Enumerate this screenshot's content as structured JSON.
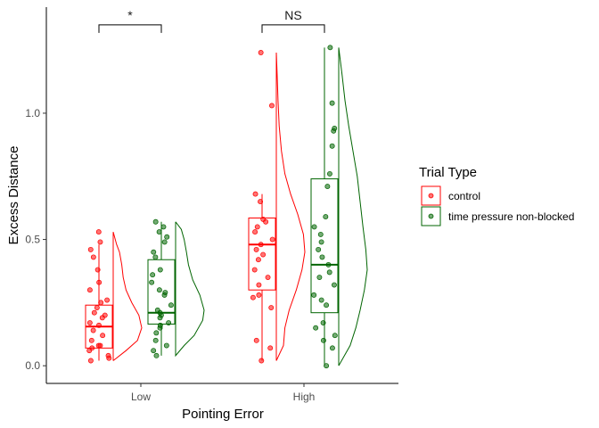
{
  "chart_data": {
    "type": "raincloud",
    "xlabel": "Pointing Error",
    "ylabel": "Excess Distance",
    "categories": [
      "Low",
      "High"
    ],
    "ylim": [
      -0.07,
      1.42
    ],
    "y_ticks": [
      0.0,
      0.5,
      1.0
    ],
    "y_tick_labels": [
      "0.0",
      "0.5",
      "1.0"
    ],
    "grid": false,
    "legend": {
      "title": "Trial Type",
      "position": "right",
      "entries": [
        "control",
        "time pressure non-blocked"
      ]
    },
    "colors": {
      "control": "#FF0000",
      "time pressure non-blocked": "#006400"
    },
    "series": [
      {
        "name": "control",
        "groups": [
          {
            "category": "Low",
            "box": {
              "q1": 0.07,
              "median": 0.155,
              "q3": 0.24,
              "whisker_low": 0.02,
              "whisker_high": 0.48
            },
            "points": [
              0.53,
              0.49,
              0.46,
              0.43,
              0.38,
              0.33,
              0.3,
              0.26,
              0.25,
              0.23,
              0.21,
              0.2,
              0.19,
              0.17,
              0.16,
              0.14,
              0.12,
              0.1,
              0.08,
              0.08,
              0.07,
              0.06,
              0.04,
              0.03,
              0.02
            ],
            "density": [
              [
                0.02,
                0.0
              ],
              [
                0.06,
                0.45
              ],
              [
                0.1,
                0.85
              ],
              [
                0.15,
                1.0
              ],
              [
                0.2,
                0.9
              ],
              [
                0.25,
                0.65
              ],
              [
                0.3,
                0.45
              ],
              [
                0.35,
                0.35
              ],
              [
                0.4,
                0.3
              ],
              [
                0.45,
                0.22
              ],
              [
                0.48,
                0.12
              ],
              [
                0.53,
                0.0
              ]
            ]
          },
          {
            "category": "High",
            "box": {
              "q1": 0.3,
              "median": 0.48,
              "q3": 0.585,
              "whisker_low": 0.02,
              "whisker_high": 0.68
            },
            "points": [
              1.24,
              1.03,
              0.68,
              0.65,
              0.58,
              0.57,
              0.55,
              0.53,
              0.5,
              0.48,
              0.46,
              0.44,
              0.42,
              0.38,
              0.35,
              0.32,
              0.28,
              0.27,
              0.23,
              0.1,
              0.07,
              0.02
            ],
            "density": [
              [
                0.02,
                0.0
              ],
              [
                0.08,
                0.25
              ],
              [
                0.15,
                0.3
              ],
              [
                0.22,
                0.45
              ],
              [
                0.3,
                0.7
              ],
              [
                0.38,
                0.9
              ],
              [
                0.45,
                1.0
              ],
              [
                0.52,
                0.95
              ],
              [
                0.6,
                0.75
              ],
              [
                0.68,
                0.5
              ],
              [
                0.76,
                0.3
              ],
              [
                0.85,
                0.18
              ],
              [
                0.95,
                0.1
              ],
              [
                1.05,
                0.06
              ],
              [
                1.15,
                0.03
              ],
              [
                1.24,
                0.0
              ]
            ]
          }
        ]
      },
      {
        "name": "time pressure non-blocked",
        "groups": [
          {
            "category": "Low",
            "box": {
              "q1": 0.165,
              "median": 0.21,
              "q3": 0.42,
              "whisker_low": 0.04,
              "whisker_high": 0.57
            },
            "points": [
              0.57,
              0.55,
              0.53,
              0.51,
              0.49,
              0.45,
              0.43,
              0.38,
              0.36,
              0.33,
              0.3,
              0.29,
              0.28,
              0.24,
              0.22,
              0.21,
              0.2,
              0.19,
              0.17,
              0.16,
              0.15,
              0.13,
              0.1,
              0.08,
              0.06,
              0.04
            ],
            "density": [
              [
                0.04,
                0.0
              ],
              [
                0.08,
                0.3
              ],
              [
                0.12,
                0.65
              ],
              [
                0.18,
                0.95
              ],
              [
                0.22,
                1.0
              ],
              [
                0.28,
                0.85
              ],
              [
                0.34,
                0.6
              ],
              [
                0.4,
                0.45
              ],
              [
                0.45,
                0.38
              ],
              [
                0.5,
                0.3
              ],
              [
                0.54,
                0.2
              ],
              [
                0.57,
                0.0
              ]
            ]
          },
          {
            "category": "High",
            "box": {
              "q1": 0.21,
              "median": 0.4,
              "q3": 0.74,
              "whisker_low": 0.0,
              "whisker_high": 1.26
            },
            "points": [
              1.26,
              1.04,
              0.94,
              0.93,
              0.87,
              0.76,
              0.71,
              0.59,
              0.55,
              0.52,
              0.49,
              0.46,
              0.43,
              0.4,
              0.37,
              0.35,
              0.32,
              0.28,
              0.26,
              0.24,
              0.17,
              0.15,
              0.12,
              0.1,
              0.07,
              0.0
            ],
            "density": [
              [
                0.0,
                0.0
              ],
              [
                0.08,
                0.4
              ],
              [
                0.15,
                0.6
              ],
              [
                0.22,
                0.75
              ],
              [
                0.3,
                0.9
              ],
              [
                0.38,
                1.0
              ],
              [
                0.46,
                0.95
              ],
              [
                0.55,
                0.85
              ],
              [
                0.65,
                0.75
              ],
              [
                0.75,
                0.65
              ],
              [
                0.85,
                0.5
              ],
              [
                0.95,
                0.35
              ],
              [
                1.05,
                0.22
              ],
              [
                1.15,
                0.12
              ],
              [
                1.26,
                0.0
              ]
            ]
          }
        ]
      }
    ],
    "annotations": [
      {
        "category": "Low",
        "label": "*",
        "y": 1.35
      },
      {
        "category": "High",
        "label": "NS",
        "y": 1.35
      }
    ]
  }
}
